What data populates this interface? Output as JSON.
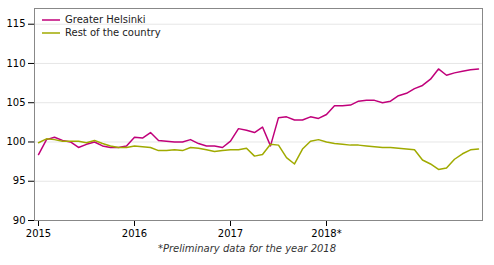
{
  "chart_data": {
    "type": "line",
    "categories": [
      "2015",
      null,
      null,
      null,
      null,
      null,
      null,
      null,
      null,
      null,
      null,
      null,
      "2016",
      null,
      null,
      null,
      null,
      null,
      null,
      null,
      null,
      null,
      null,
      null,
      "2017",
      null,
      null,
      null,
      null,
      null,
      null,
      null,
      null,
      null,
      null,
      null,
      "2018*",
      null,
      null,
      null,
      null,
      null,
      null,
      null,
      null,
      null,
      null,
      null,
      null,
      null,
      null,
      null,
      null,
      null,
      null,
      null
    ],
    "series": [
      {
        "name": "Greater Helsinki",
        "color": "#c0007a",
        "values": [
          98.4,
          100.3,
          100.6,
          100.2,
          100.0,
          99.3,
          99.7,
          100.0,
          99.5,
          99.3,
          99.3,
          99.5,
          100.6,
          100.5,
          101.2,
          100.2,
          100.1,
          100.0,
          100.0,
          100.3,
          99.8,
          99.5,
          99.5,
          99.3,
          100.1,
          101.7,
          101.5,
          101.2,
          101.9,
          99.5,
          103.1,
          103.2,
          102.8,
          102.8,
          103.2,
          103.0,
          103.5,
          104.6,
          104.6,
          104.7,
          105.2,
          105.3,
          105.3,
          105.0,
          105.2,
          105.9,
          106.2,
          106.8,
          107.2,
          108.0,
          109.3,
          108.5,
          108.8,
          109.0,
          109.2,
          109.3
        ]
      },
      {
        "name": "Rest of the country",
        "color": "#a0aa00",
        "values": [
          99.9,
          100.4,
          100.3,
          100.1,
          100.1,
          100.1,
          99.9,
          100.2,
          99.8,
          99.5,
          99.3,
          99.3,
          99.5,
          99.4,
          99.3,
          98.9,
          98.9,
          99.0,
          98.9,
          99.3,
          99.2,
          99.0,
          98.8,
          98.9,
          99.0,
          99.0,
          99.2,
          98.2,
          98.4,
          99.7,
          99.6,
          98.0,
          97.2,
          99.1,
          100.1,
          100.3,
          100.0,
          99.8,
          99.7,
          99.6,
          99.6,
          99.5,
          99.4,
          99.3,
          99.3,
          99.2,
          99.1,
          99.0,
          97.7,
          97.2,
          96.5,
          96.7,
          97.8,
          98.5,
          99.0,
          99.1
        ]
      }
    ],
    "ylim": [
      90,
      117
    ],
    "yticks": [
      90,
      95,
      100,
      105,
      110,
      115
    ],
    "grid": true,
    "legend": "upper left",
    "annotations": [
      "*Preliminary data for the year 2018"
    ]
  }
}
